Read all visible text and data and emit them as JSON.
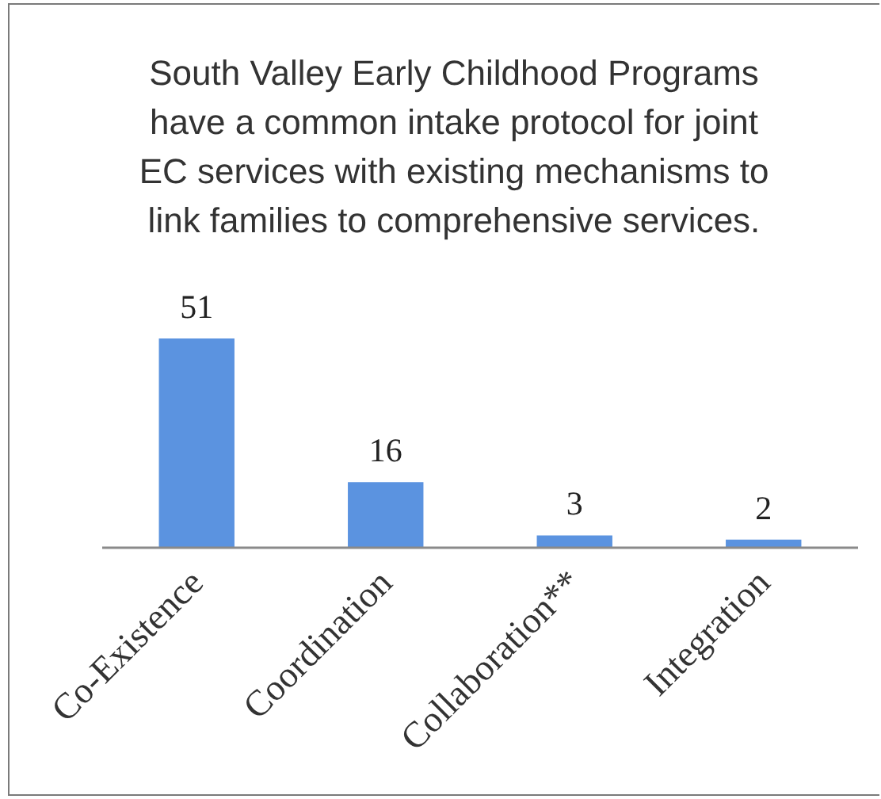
{
  "chart_data": {
    "type": "bar",
    "title": "South Valley Early Childhood Programs have a common intake protocol for joint EC services with existing mechanisms to link families to comprehensive services.",
    "categories": [
      "Co-Existence",
      "Coordination",
      "Collaboration**",
      "Integration"
    ],
    "values": [
      51,
      16,
      3,
      2
    ],
    "color": "#5b93e0",
    "data_labels": true,
    "tick_labels": "x",
    "grid": false
  }
}
